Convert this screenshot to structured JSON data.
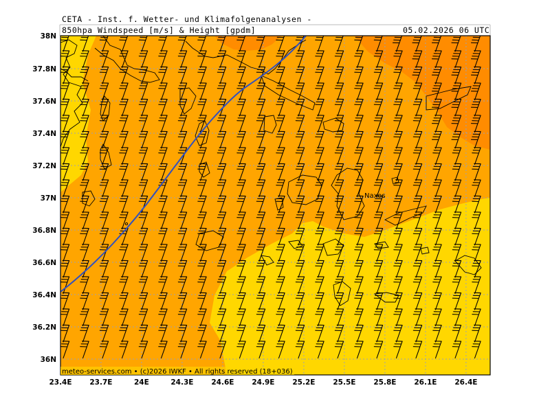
{
  "header": {
    "title": "CETA - Inst. f. Wetter- und Klimafolgenanalysen -",
    "subtitle": "850hpa Windspeed [m/s] & Height [gpdm]",
    "date": "05.02.2026 06 UTC"
  },
  "map": {
    "region": "Aegean Sea / Cyclades",
    "lon_ticks": [
      "23.4E",
      "23.7E",
      "24E",
      "24.3E",
      "24.6E",
      "24.9E",
      "25.2E",
      "25.5E",
      "25.8E",
      "26.1E",
      "26.4E"
    ],
    "lat_ticks": [
      "38N",
      "37.8N",
      "37.6N",
      "37.4N",
      "37.2N",
      "37N",
      "36.8N",
      "36.6N",
      "36.4N",
      "36.2N",
      "36N"
    ],
    "place_labels": [
      "Naxos"
    ],
    "footer": "meteo-services.com • (c)2026 IWKF • All rights reserved (18+036)",
    "colors": {
      "fill_low": "#FFD700",
      "fill_mid": "#FFA500",
      "fill_high": "#FF8C00",
      "height_contour": "#3050C0",
      "coast": "#000000",
      "grid": "#9aa0b8"
    },
    "wind_direction": "north-northeast",
    "wind_barb_style": "three full barbs (~15 m/s), four barbs in strongest area"
  }
}
